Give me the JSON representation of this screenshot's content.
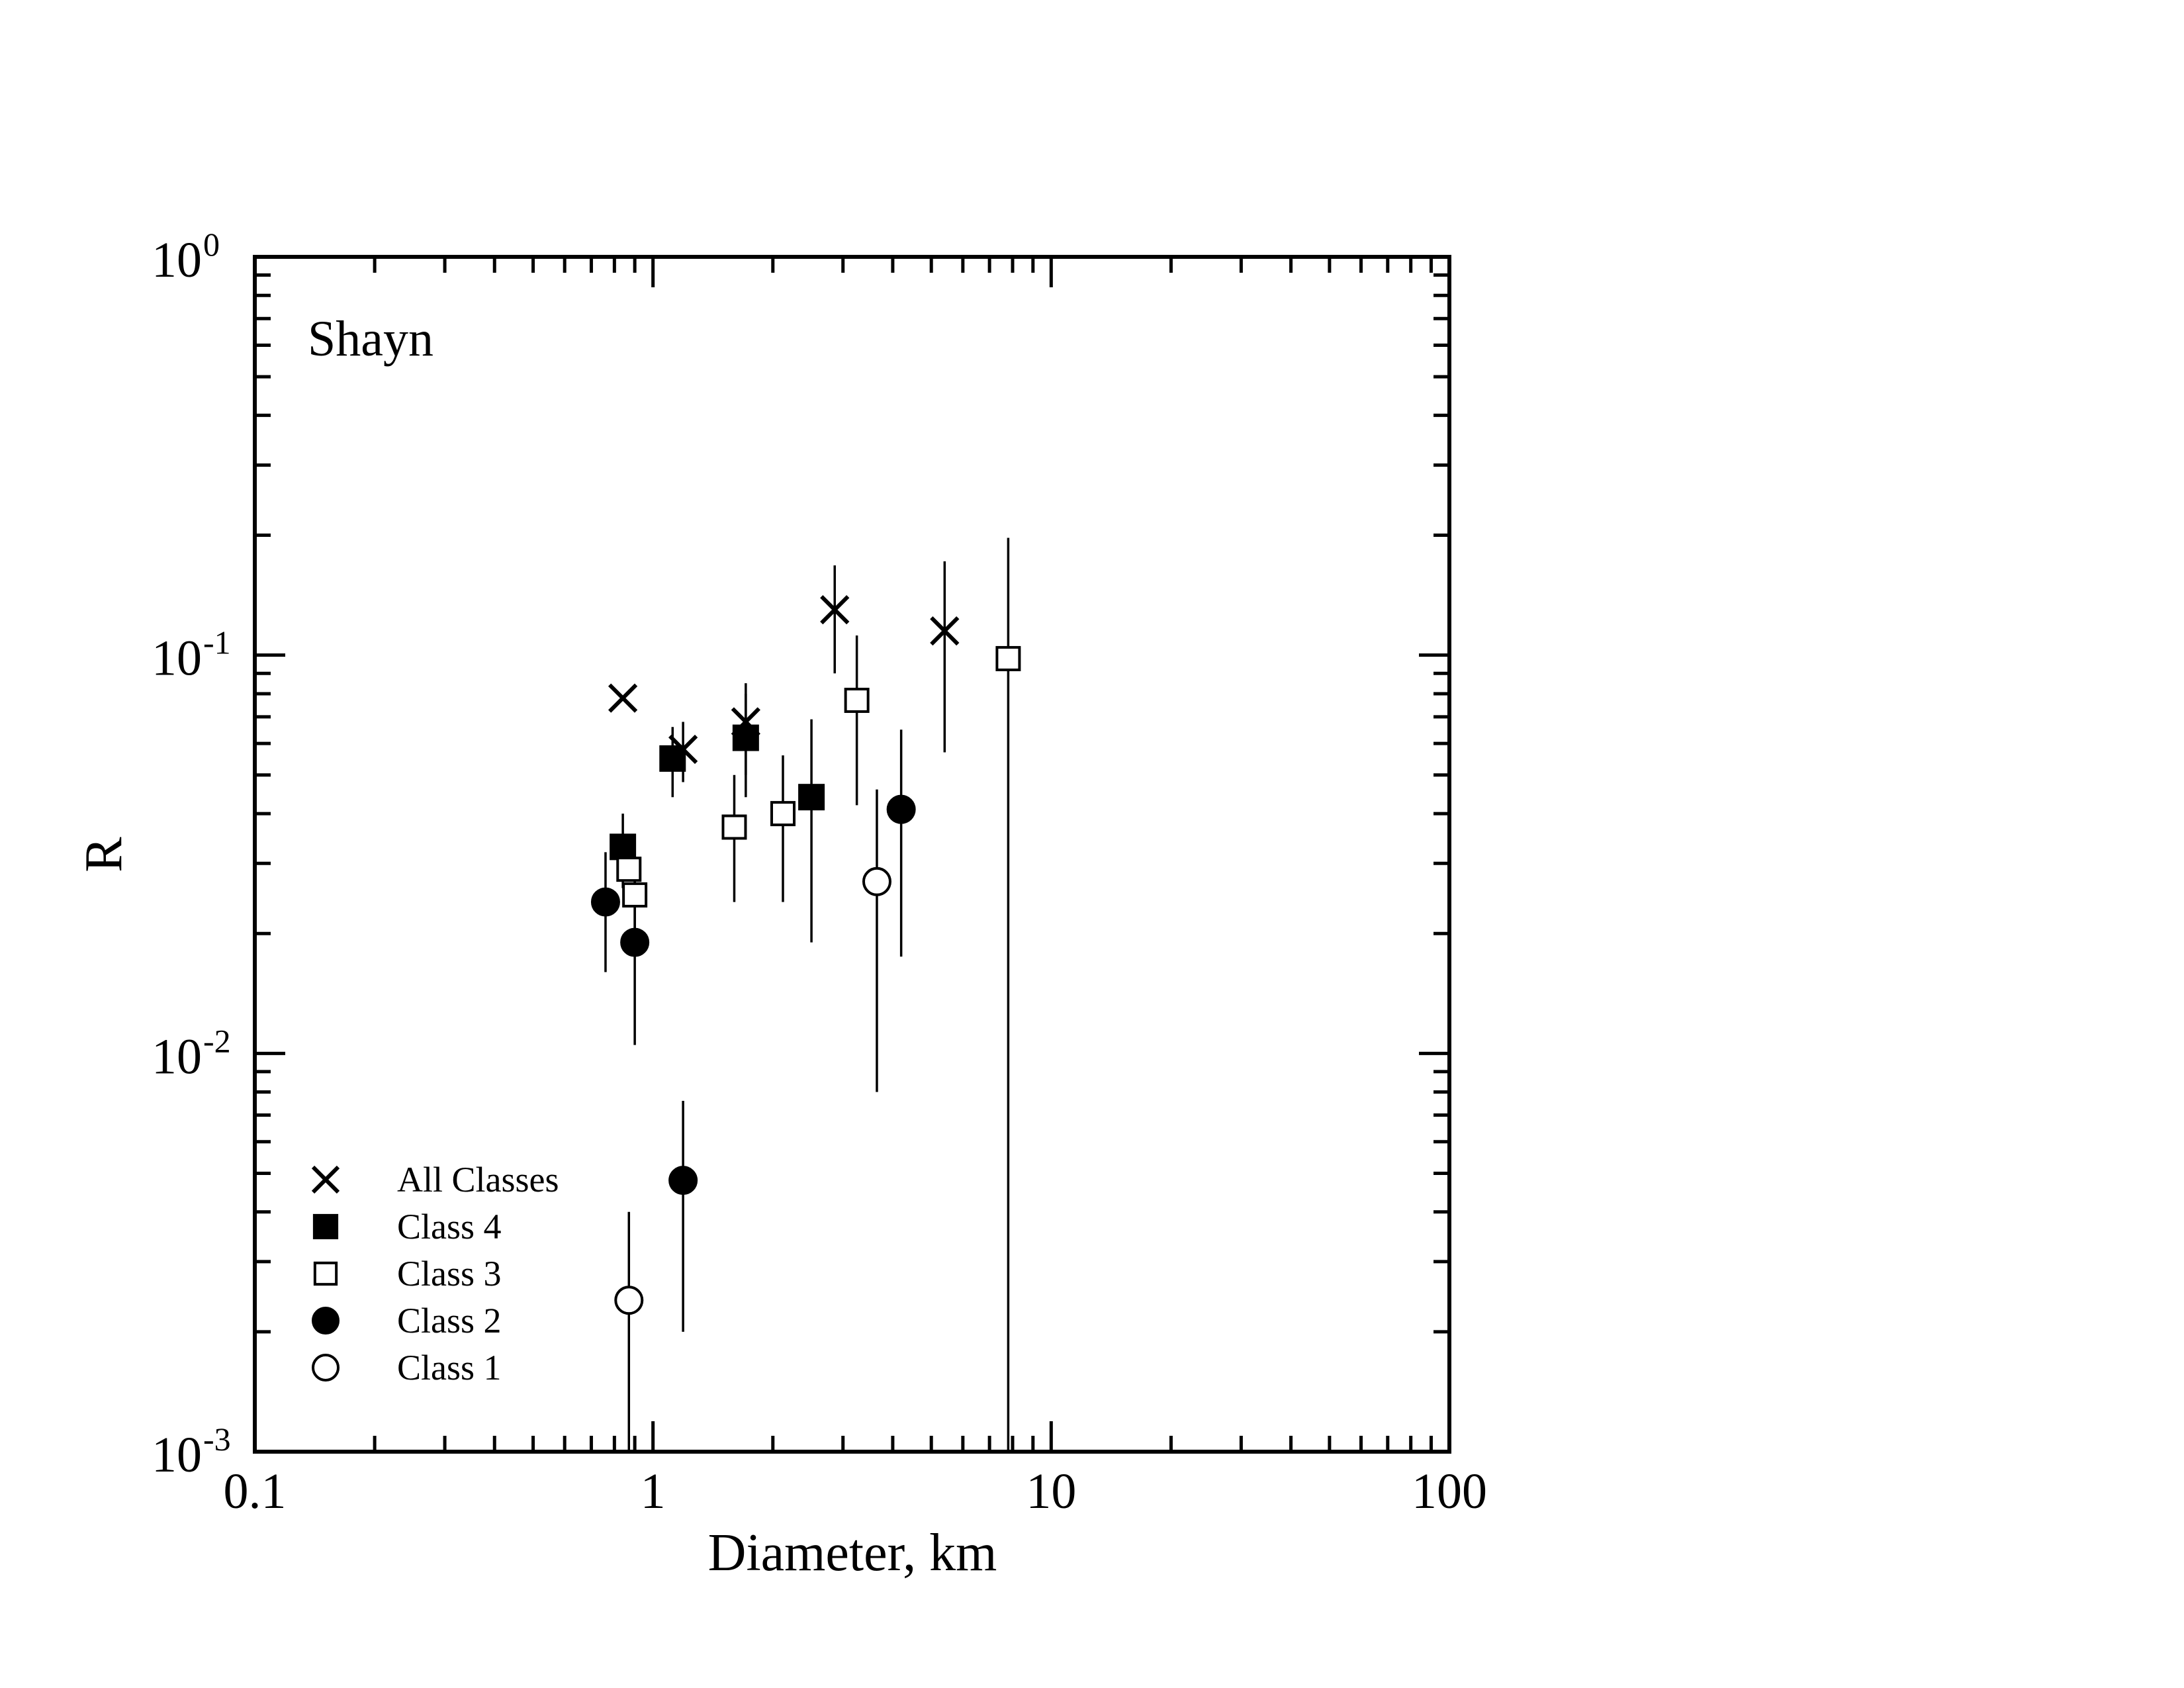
{
  "chart_data": {
    "type": "scatter",
    "panel_label": "Shayn",
    "xlabel": "Diameter, km",
    "ylabel": "R",
    "x_scale": "log",
    "y_scale": "log",
    "xlim": [
      0.1,
      100
    ],
    "ylim": [
      0.001,
      1
    ],
    "grid": false,
    "legend_position": "bottom-left",
    "x_ticks": [
      {
        "value": 0.1,
        "label": "0.1"
      },
      {
        "value": 1,
        "label": "1"
      },
      {
        "value": 10,
        "label": "10"
      },
      {
        "value": 100,
        "label": "100"
      }
    ],
    "y_ticks": [
      {
        "value": 1,
        "base": "10",
        "exp": "0"
      },
      {
        "value": 0.1,
        "base": "10",
        "exp": "-1"
      },
      {
        "value": 0.01,
        "base": "10",
        "exp": "-2"
      },
      {
        "value": 0.001,
        "base": "10",
        "exp": "-3"
      }
    ],
    "series": [
      {
        "name": "All Classes",
        "marker": "x",
        "points": [
          {
            "x": 0.84,
            "y": 0.078,
            "ylo": 0.078,
            "yhi": 0.078
          },
          {
            "x": 1.19,
            "y": 0.058,
            "ylo": 0.048,
            "yhi": 0.068
          },
          {
            "x": 1.71,
            "y": 0.068,
            "ylo": 0.05,
            "yhi": 0.085
          },
          {
            "x": 2.86,
            "y": 0.13,
            "ylo": 0.09,
            "yhi": 0.168
          },
          {
            "x": 5.4,
            "y": 0.115,
            "ylo": 0.057,
            "yhi": 0.172
          }
        ]
      },
      {
        "name": "Class 4",
        "marker": "filled-square",
        "points": [
          {
            "x": 0.84,
            "y": 0.033,
            "ylo": 0.026,
            "yhi": 0.04
          },
          {
            "x": 1.12,
            "y": 0.055,
            "ylo": 0.044,
            "yhi": 0.066
          },
          {
            "x": 1.71,
            "y": 0.062,
            "ylo": 0.044,
            "yhi": 0.08
          },
          {
            "x": 2.5,
            "y": 0.044,
            "ylo": 0.019,
            "yhi": 0.069
          }
        ]
      },
      {
        "name": "Class 3",
        "marker": "open-square",
        "points": [
          {
            "x": 0.87,
            "y": 0.029,
            "ylo": 0.029,
            "yhi": 0.029
          },
          {
            "x": 0.9,
            "y": 0.025,
            "ylo": 0.018,
            "yhi": 0.032
          },
          {
            "x": 1.6,
            "y": 0.037,
            "ylo": 0.024,
            "yhi": 0.05
          },
          {
            "x": 2.12,
            "y": 0.04,
            "ylo": 0.024,
            "yhi": 0.056
          },
          {
            "x": 3.25,
            "y": 0.077,
            "ylo": 0.042,
            "yhi": 0.112
          },
          {
            "x": 7.8,
            "y": 0.098,
            "ylo": 0.001,
            "yhi": 0.197
          }
        ]
      },
      {
        "name": "Class 2",
        "marker": "filled-circle",
        "points": [
          {
            "x": 0.76,
            "y": 0.024,
            "ylo": 0.016,
            "yhi": 0.032
          },
          {
            "x": 0.9,
            "y": 0.019,
            "ylo": 0.0105,
            "yhi": 0.028
          },
          {
            "x": 1.19,
            "y": 0.0048,
            "ylo": 0.002,
            "yhi": 0.0076
          },
          {
            "x": 4.2,
            "y": 0.041,
            "ylo": 0.0175,
            "yhi": 0.065
          }
        ]
      },
      {
        "name": "Class 1",
        "marker": "open-circle",
        "points": [
          {
            "x": 0.87,
            "y": 0.0024,
            "ylo": 0.001,
            "yhi": 0.004
          },
          {
            "x": 3.65,
            "y": 0.027,
            "ylo": 0.008,
            "yhi": 0.046
          }
        ]
      }
    ]
  }
}
